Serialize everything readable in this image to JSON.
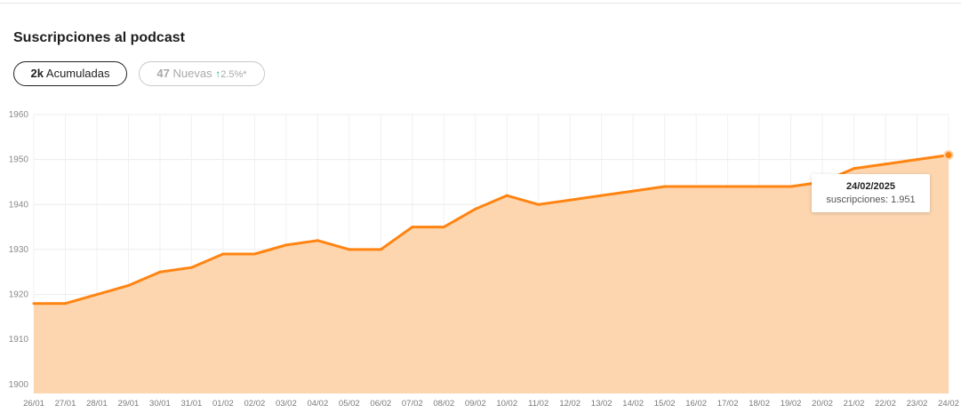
{
  "header": {
    "title": "Suscripciones al podcast"
  },
  "pills": {
    "accumulated_value": "2k",
    "accumulated_label": "Acumuladas",
    "new_value": "47",
    "new_label": "Nuevas",
    "new_arrow": "↑",
    "new_change": "2.5%*"
  },
  "tooltip": {
    "date": "24/02/2025",
    "label": "suscripciones: 1.951"
  },
  "colors": {
    "line": "#ff8412",
    "fill": "#fdd6b0",
    "accent_up": "#2fb47c"
  },
  "chart_data": {
    "type": "area",
    "title": "Suscripciones al podcast",
    "categories": [
      "26/01",
      "27/01",
      "28/01",
      "29/01",
      "30/01",
      "31/01",
      "01/02",
      "02/02",
      "03/02",
      "04/02",
      "05/02",
      "06/02",
      "07/02",
      "08/02",
      "09/02",
      "10/02",
      "11/02",
      "12/02",
      "13/02",
      "14/02",
      "15/02",
      "16/02",
      "17/02",
      "18/02",
      "19/02",
      "20/02",
      "21/02",
      "22/02",
      "23/02",
      "24/02"
    ],
    "series": [
      {
        "name": "suscripciones",
        "values": [
          1918,
          1918,
          1920,
          1922,
          1925,
          1926,
          1929,
          1929,
          1931,
          1932,
          1930,
          1930,
          1935,
          1935,
          1939,
          1942,
          1940,
          1941,
          1942,
          1943,
          1944,
          1944,
          1944,
          1944,
          1944,
          1945,
          1948,
          1949,
          1950,
          1951
        ]
      }
    ],
    "y_ticks": [
      1900,
      1910,
      1920,
      1930,
      1940,
      1950,
      1960
    ],
    "ylim": [
      1898,
      1960
    ],
    "xlabel": "",
    "ylabel": "",
    "grid": true,
    "highlight_index": 29
  }
}
